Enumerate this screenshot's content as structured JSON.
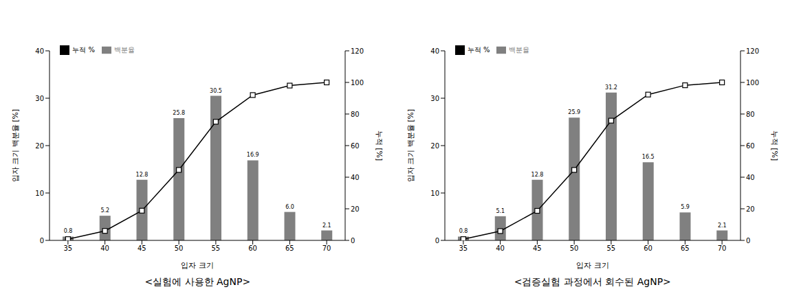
{
  "chart_data": [
    {
      "type": "bar",
      "title": "<실험에 사용한 AgNP>",
      "x_label": "입자 크기",
      "y_label": "입자 크기 백분율 [%]",
      "y2_label": "누적 [%]",
      "categories": [
        35,
        40,
        45,
        50,
        55,
        60,
        65,
        70
      ],
      "series": [
        {
          "name": "백분율",
          "type": "bar",
          "color": "#808080",
          "values": [
            0.8,
            5.2,
            12.8,
            25.8,
            30.5,
            16.9,
            6.0,
            2.1
          ],
          "value_labels": [
            "0.8",
            "5.2",
            "12.8",
            "25.8",
            "30.5",
            "16.9",
            "6.0",
            "2.1"
          ]
        },
        {
          "name": "누적 %",
          "type": "line",
          "color": "#000000",
          "marker": "square",
          "axis": "y2",
          "values": [
            0.8,
            6.0,
            18.8,
            44.6,
            75.1,
            92.0,
            98.0,
            100.0
          ]
        }
      ],
      "ylim": [
        0,
        40
      ],
      "yticks": [
        0,
        10,
        20,
        30,
        40
      ],
      "y2lim": [
        0,
        120
      ],
      "y2ticks": [
        0,
        20,
        40,
        60,
        80,
        100,
        120
      ],
      "legend": "upper left",
      "data_labels": true,
      "grid": false
    },
    {
      "type": "bar",
      "title": "<검증실험 과정에서 회수된 AgNP>",
      "x_label": "입자 크기",
      "y_label": "입자 크기 백분율 [%]",
      "y2_label": "누적 [%]",
      "categories": [
        35,
        40,
        45,
        50,
        55,
        60,
        65,
        70
      ],
      "series": [
        {
          "name": "백분율",
          "type": "bar",
          "color": "#808080",
          "values": [
            0.8,
            5.1,
            12.8,
            25.9,
            31.2,
            16.5,
            5.9,
            2.1
          ],
          "value_labels": [
            "0.8",
            "5.1",
            "12.8",
            "25.9",
            "31.2",
            "16.5",
            "5.9",
            "2.1"
          ]
        },
        {
          "name": "누적 %",
          "type": "line",
          "color": "#000000",
          "marker": "square",
          "axis": "y2",
          "values": [
            0.8,
            5.9,
            18.7,
            44.6,
            75.8,
            92.3,
            98.2,
            100.0
          ]
        }
      ],
      "ylim": [
        0,
        40
      ],
      "yticks": [
        0,
        10,
        20,
        30,
        40
      ],
      "y2lim": [
        0,
        120
      ],
      "y2ticks": [
        0,
        20,
        40,
        60,
        80,
        100,
        120
      ],
      "legend": "upper left",
      "data_labels": true,
      "grid": false
    }
  ]
}
